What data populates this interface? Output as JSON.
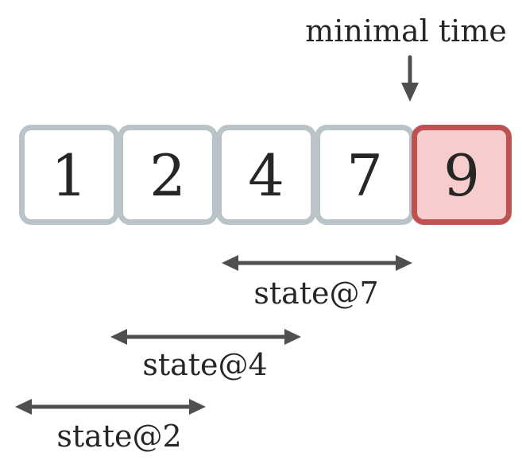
{
  "pointer": {
    "label": "minimal time",
    "target_value": 9
  },
  "cells": [
    {
      "value": "1",
      "highlight": false
    },
    {
      "value": "2",
      "highlight": false
    },
    {
      "value": "4",
      "highlight": false
    },
    {
      "value": "7",
      "highlight": false
    },
    {
      "value": "9",
      "highlight": true
    }
  ],
  "states": [
    {
      "label": "state@7",
      "from_cell": 2,
      "to_cell": 3
    },
    {
      "label": "state@4",
      "from_cell": 1,
      "to_cell": 2
    },
    {
      "label": "state@2",
      "from_cell": 0,
      "to_cell": 1
    }
  ],
  "colors": {
    "cell_border": "#bac3c7",
    "highlight_fill": "#f6cccc",
    "highlight_border": "#bd5250",
    "arrow": "#4f4f4f",
    "text": "#262626"
  }
}
